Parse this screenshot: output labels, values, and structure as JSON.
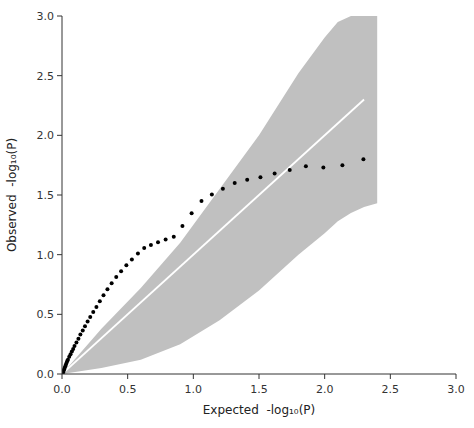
{
  "chart_data": {
    "type": "scatter",
    "xlabel": "Expected  -log₁₀(P)",
    "ylabel": "Observed  -log₁₀(P)",
    "xlim": [
      0,
      3.0
    ],
    "ylim": [
      0,
      3.0
    ],
    "xticks": [
      {
        "value": 0.0,
        "label": "0.0"
      },
      0.5,
      {
        "value": 1.0,
        "label": "1.0"
      },
      1.5,
      {
        "value": 2.0,
        "label": "2.0"
      },
      2.5,
      {
        "value": 3.0,
        "label": "3.0"
      }
    ],
    "yticks": [
      {
        "value": 0.0,
        "label": "0.0"
      },
      0.5,
      {
        "value": 1.0,
        "label": "1.0"
      },
      1.5,
      {
        "value": 2.0,
        "label": "2.0"
      },
      2.5,
      {
        "value": 3.0,
        "label": "3.0"
      }
    ],
    "grid": false,
    "series": [
      {
        "type": "area",
        "color": "#c0c0c0",
        "x": [
          0.0,
          0.3,
          0.6,
          0.9,
          1.2,
          1.5,
          1.8,
          2.0,
          2.1,
          2.2,
          2.3,
          2.4
        ],
        "values": [
          0.0,
          0.38,
          0.72,
          1.1,
          1.55,
          2.0,
          2.52,
          2.82,
          2.95,
          3.0,
          3.0,
          3.0
        ],
        "lower_x": [
          0.0,
          0.3,
          0.6,
          0.9,
          1.2,
          1.5,
          1.8,
          2.0,
          2.1,
          2.2,
          2.3,
          2.4
        ],
        "lower": [
          0.0,
          0.05,
          0.12,
          0.25,
          0.45,
          0.7,
          1.0,
          1.18,
          1.28,
          1.35,
          1.4,
          1.43
        ]
      },
      {
        "type": "line",
        "color": "white",
        "x": [
          0.0,
          2.3
        ],
        "values": [
          0.0,
          2.3
        ]
      },
      {
        "color": "black",
        "x": [
          0.004,
          0.008,
          0.012,
          0.016,
          0.02,
          0.025,
          0.03,
          0.035,
          0.04,
          0.045,
          0.055,
          0.065,
          0.075,
          0.085,
          0.095,
          0.11,
          0.125,
          0.14,
          0.158,
          0.175,
          0.195,
          0.215,
          0.238,
          0.262,
          0.288,
          0.316,
          0.346,
          0.378,
          0.413,
          0.45,
          0.49,
          0.532,
          0.578,
          0.626,
          0.677,
          0.731,
          0.789,
          0.851,
          0.917,
          0.987,
          1.062,
          1.141,
          1.225,
          1.315,
          1.41,
          1.511,
          1.619,
          1.734,
          1.857,
          1.99,
          2.135,
          2.295
        ],
        "values": [
          0.005,
          0.015,
          0.025,
          0.038,
          0.05,
          0.065,
          0.08,
          0.095,
          0.108,
          0.12,
          0.145,
          0.165,
          0.188,
          0.21,
          0.235,
          0.265,
          0.295,
          0.33,
          0.365,
          0.4,
          0.44,
          0.478,
          0.52,
          0.562,
          0.61,
          0.66,
          0.71,
          0.76,
          0.812,
          0.862,
          0.912,
          0.96,
          1.01,
          1.055,
          1.08,
          1.105,
          1.128,
          1.15,
          1.24,
          1.348,
          1.45,
          1.505,
          1.552,
          1.6,
          1.628,
          1.648,
          1.68,
          1.71,
          1.74,
          1.73,
          1.75,
          1.8
        ]
      }
    ]
  }
}
